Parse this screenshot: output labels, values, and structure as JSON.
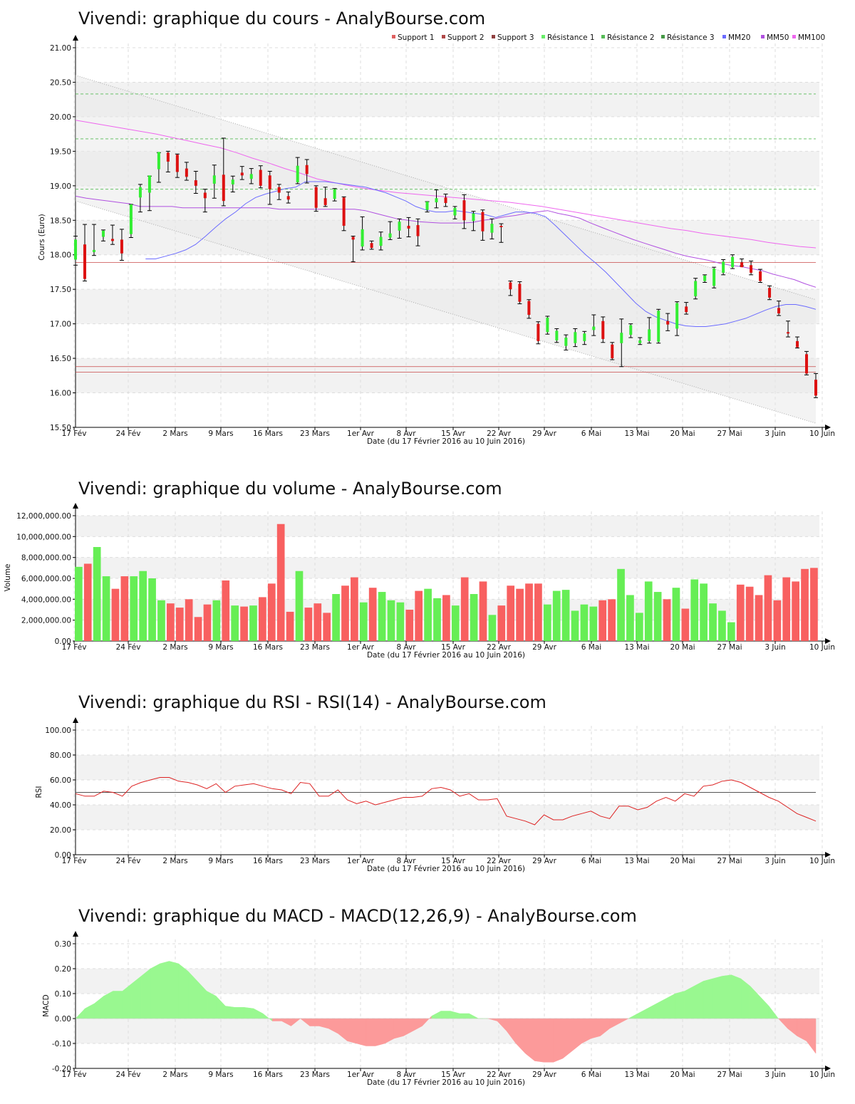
{
  "chart_data": [
    {
      "type": "candlestick",
      "title": "Vivendi: graphique du cours - AnalyBourse.com",
      "xlabel": "Date (du 17 Février 2016 au 10 Juin 2016)",
      "ylabel": "Cours (Euro)",
      "ylim": [
        15.5,
        21.0
      ],
      "yticks": [
        "15.50",
        "16.00",
        "16.50",
        "17.00",
        "17.50",
        "18.00",
        "18.50",
        "19.00",
        "19.50",
        "20.00",
        "20.50",
        "21.00"
      ],
      "xticks": [
        "17 Fév",
        "24 Fév",
        "2 Mars",
        "9 Mars",
        "16 Mars",
        "23 Mars",
        "1er Avr",
        "8 Avr",
        "15 Avr",
        "22 Avr",
        "29 Avr",
        "6 Mai",
        "13 Mai",
        "20 Mai",
        "27 Mai",
        "3 Juin",
        "10 Juin"
      ],
      "legend": [
        "Support 1",
        "Support 2",
        "Support 3",
        "Résistance 1",
        "Résistance 2",
        "Résistance 3",
        "MM20",
        "MM50",
        "MM100"
      ],
      "legend_colors": [
        "#e06060",
        "#b04848",
        "#904040",
        "#66ee66",
        "#55bb55",
        "#449944",
        "#6b6bff",
        "#b050e0",
        "#ee66ee"
      ],
      "supports": [
        17.89,
        16.38,
        16.3
      ],
      "resistances": [
        18.95,
        19.68,
        20.33
      ],
      "candles": [
        [
          18.27,
          17.85,
          17.93,
          18.22
        ],
        [
          18.44,
          17.62,
          18.15,
          17.65
        ],
        [
          18.44,
          17.99,
          18.04,
          18.07
        ],
        [
          18.36,
          18.2,
          18.26,
          18.35
        ],
        [
          18.43,
          18.15,
          18.23,
          18.2
        ],
        [
          18.37,
          17.92,
          18.22,
          18.02
        ],
        [
          18.73,
          18.25,
          18.3,
          18.73
        ],
        [
          19.02,
          18.62,
          18.83,
          18.98
        ],
        [
          19.14,
          18.64,
          18.9,
          19.15
        ],
        [
          19.48,
          19.05,
          19.24,
          19.49
        ],
        [
          19.5,
          19.2,
          19.48,
          19.35
        ],
        [
          19.46,
          19.12,
          19.45,
          19.2
        ],
        [
          19.34,
          19.08,
          19.25,
          19.13
        ],
        [
          19.21,
          18.89,
          19.08,
          19.0
        ],
        [
          18.95,
          18.62,
          18.9,
          18.82
        ],
        [
          19.3,
          18.82,
          19.03,
          19.15
        ],
        [
          19.69,
          18.71,
          19.16,
          18.78
        ],
        [
          19.14,
          18.91,
          19.02,
          19.09
        ],
        [
          19.28,
          19.09,
          19.19,
          19.15
        ],
        [
          19.25,
          19.03,
          19.1,
          19.17
        ],
        [
          19.29,
          18.97,
          19.23,
          19.0
        ],
        [
          19.21,
          18.73,
          19.15,
          18.95
        ],
        [
          19.02,
          18.8,
          18.98,
          18.9
        ],
        [
          18.91,
          18.75,
          18.85,
          18.8
        ],
        [
          19.41,
          19.03,
          19.05,
          19.29
        ],
        [
          19.38,
          19.04,
          19.3,
          19.17
        ],
        [
          19.0,
          18.63,
          18.98,
          18.68
        ],
        [
          18.98,
          18.7,
          18.82,
          18.72
        ],
        [
          18.96,
          18.78,
          18.81,
          18.95
        ],
        [
          18.84,
          18.35,
          18.83,
          18.42
        ],
        [
          18.27,
          17.9,
          18.26,
          18.22
        ],
        [
          18.55,
          18.07,
          18.12,
          18.37
        ],
        [
          18.2,
          18.08,
          18.17,
          18.1
        ],
        [
          18.33,
          18.07,
          18.13,
          18.26
        ],
        [
          18.48,
          18.22,
          18.25,
          18.31
        ],
        [
          18.52,
          18.24,
          18.35,
          18.48
        ],
        [
          18.54,
          18.26,
          18.42,
          18.38
        ],
        [
          18.52,
          18.13,
          18.43,
          18.27
        ],
        [
          18.77,
          18.62,
          18.65,
          18.77
        ],
        [
          18.94,
          18.68,
          18.76,
          18.82
        ],
        [
          18.88,
          18.7,
          18.83,
          18.75
        ],
        [
          18.7,
          18.52,
          18.57,
          18.68
        ],
        [
          18.87,
          18.38,
          18.79,
          18.5
        ],
        [
          18.63,
          18.35,
          18.49,
          18.6
        ],
        [
          18.65,
          18.21,
          18.62,
          18.34
        ],
        [
          18.52,
          18.23,
          18.32,
          18.45
        ],
        [
          18.45,
          18.18,
          18.42,
          18.4
        ],
        [
          17.62,
          17.41,
          17.6,
          17.5
        ],
        [
          17.61,
          17.29,
          17.58,
          17.32
        ],
        [
          17.35,
          17.08,
          17.33,
          17.13
        ],
        [
          17.03,
          16.71,
          17.0,
          16.75
        ],
        [
          17.11,
          16.85,
          16.88,
          17.09
        ],
        [
          16.93,
          16.73,
          16.76,
          16.9
        ],
        [
          16.84,
          16.62,
          16.68,
          16.8
        ],
        [
          16.93,
          16.67,
          16.72,
          16.88
        ],
        [
          16.89,
          16.7,
          16.75,
          16.86
        ],
        [
          17.13,
          16.83,
          16.91,
          16.96
        ],
        [
          17.1,
          16.73,
          17.04,
          16.78
        ],
        [
          16.73,
          16.48,
          16.7,
          16.5
        ],
        [
          17.07,
          16.38,
          16.72,
          16.87
        ],
        [
          17.0,
          16.8,
          16.84,
          16.98
        ],
        [
          16.8,
          16.7,
          16.72,
          16.76
        ],
        [
          17.09,
          16.72,
          16.75,
          16.92
        ],
        [
          17.21,
          16.72,
          16.74,
          17.19
        ],
        [
          17.15,
          16.9,
          17.04,
          16.99
        ],
        [
          17.32,
          16.83,
          16.93,
          17.3
        ],
        [
          17.31,
          17.14,
          17.25,
          17.17
        ],
        [
          17.66,
          17.36,
          17.4,
          17.62
        ],
        [
          17.71,
          17.6,
          17.62,
          17.7
        ],
        [
          17.82,
          17.52,
          17.55,
          17.8
        ],
        [
          17.93,
          17.71,
          17.74,
          17.9
        ],
        [
          18.0,
          17.8,
          17.82,
          17.97
        ],
        [
          17.94,
          17.84,
          17.89,
          17.82
        ],
        [
          17.91,
          17.71,
          17.85,
          17.74
        ],
        [
          17.79,
          17.6,
          17.76,
          17.62
        ],
        [
          17.55,
          17.35,
          17.52,
          17.38
        ],
        [
          17.33,
          17.12,
          17.23,
          17.15
        ],
        [
          17.04,
          16.81,
          16.88,
          16.86
        ],
        [
          16.81,
          16.65,
          16.75,
          16.66
        ],
        [
          16.6,
          16.26,
          16.56,
          16.28
        ],
        [
          16.28,
          15.93,
          16.19,
          15.96
        ]
      ],
      "mm20": [
        null,
        null,
        null,
        null,
        null,
        null,
        null,
        17.94,
        17.94,
        17.98,
        18.02,
        18.07,
        18.15,
        18.27,
        18.4,
        18.52,
        18.62,
        18.74,
        18.83,
        18.88,
        18.92,
        18.96,
        18.98,
        19.06,
        19.06,
        19.06,
        19.04,
        19.02,
        19.0,
        18.98,
        18.94,
        18.9,
        18.84,
        18.78,
        18.7,
        18.65,
        18.62,
        18.62,
        18.64,
        18.62,
        18.6,
        18.58,
        18.54,
        18.58,
        18.62,
        18.62,
        18.6,
        18.55,
        18.42,
        18.28,
        18.14,
        18.0,
        17.88,
        17.75,
        17.6,
        17.45,
        17.3,
        17.18,
        17.1,
        17.05,
        17.0,
        16.97,
        16.96,
        16.96,
        16.98,
        17.0,
        17.04,
        17.08,
        17.14,
        17.2,
        17.25,
        17.28,
        17.28,
        17.25,
        17.21
      ],
      "mm50": [
        18.85,
        18.82,
        18.8,
        18.78,
        18.76,
        18.74,
        18.7,
        18.7,
        18.7,
        18.7,
        18.68,
        18.68,
        18.68,
        18.68,
        18.68,
        18.68,
        18.68,
        18.68,
        18.68,
        18.66,
        18.66,
        18.66,
        18.66,
        18.66,
        18.66,
        18.66,
        18.66,
        18.64,
        18.6,
        18.56,
        18.52,
        18.5,
        18.48,
        18.47,
        18.46,
        18.46,
        18.46,
        18.47,
        18.5,
        18.52,
        18.55,
        18.57,
        18.6,
        18.62,
        18.64,
        18.6,
        18.57,
        18.53,
        18.46,
        18.4,
        18.34,
        18.28,
        18.22,
        18.17,
        18.12,
        18.07,
        18.02,
        17.98,
        17.95,
        17.92,
        17.88,
        17.85,
        17.83,
        17.8,
        17.77,
        17.72,
        17.68,
        17.64,
        17.58,
        17.53
      ],
      "mm100": [
        19.95,
        19.91,
        19.87,
        19.83,
        19.79,
        19.75,
        19.7,
        19.65,
        19.6,
        19.55,
        19.48,
        19.4,
        19.33,
        19.25,
        19.18,
        19.1,
        19.05,
        19.0,
        18.96,
        18.93,
        18.9,
        18.88,
        18.86,
        18.84,
        18.82,
        18.8,
        18.78,
        18.76,
        18.73,
        18.7,
        18.66,
        18.62,
        18.58,
        18.54,
        18.5,
        18.46,
        18.42,
        18.38,
        18.35,
        18.31,
        18.28,
        18.25,
        18.22,
        18.18,
        18.15,
        18.12,
        18.1
      ]
    },
    {
      "type": "bar",
      "title": "Vivendi: graphique du volume - AnalyBourse.com",
      "xlabel": "Date (du 17 Février 2016 au 10 Juin 2016)",
      "ylabel": "Volume",
      "ylim": [
        0,
        12000000
      ],
      "yticks": [
        "0.00",
        "2,000,000.00",
        "4,000,000.00",
        "6,000,000.00",
        "8,000,000.00",
        "10,000,000.00",
        "12,000,000.00"
      ],
      "xticks": [
        "17 Fév",
        "24 Fév",
        "2 Mars",
        "9 Mars",
        "16 Mars",
        "23 Mars",
        "1er Avr",
        "8 Avr",
        "15 Avr",
        "22 Avr",
        "29 Avr",
        "6 Mai",
        "13 Mai",
        "20 Mai",
        "27 Mai",
        "3 Juin",
        "10 Juin"
      ],
      "values": [
        7100000,
        7400000,
        9000000,
        6200000,
        5000000,
        6200000,
        6200000,
        6700000,
        6000000,
        3900000,
        3600000,
        3200000,
        4000000,
        2300000,
        3500000,
        3900000,
        5800000,
        3400000,
        3300000,
        3400000,
        4200000,
        5500000,
        11200000,
        2800000,
        6700000,
        3200000,
        3600000,
        2700000,
        4500000,
        5300000,
        6100000,
        3700000,
        5100000,
        4700000,
        3900000,
        3700000,
        3000000,
        4800000,
        5000000,
        4100000,
        4400000,
        3400000,
        6100000,
        4500000,
        5700000,
        2500000,
        3400000,
        5300000,
        5000000,
        5500000,
        5500000,
        3500000,
        4800000,
        4900000,
        2900000,
        3500000,
        3300000,
        3900000,
        4000000,
        6900000,
        4400000,
        2700000,
        5700000,
        4700000,
        4000000,
        5100000,
        3100000,
        5900000,
        5500000,
        3600000,
        2900000,
        1800000,
        5400000,
        5200000,
        4400000,
        6300000,
        3900000,
        6100000,
        5700000,
        6900000,
        7000000
      ]
    },
    {
      "type": "line",
      "title": "Vivendi: graphique du RSI - RSI(14) - AnalyBourse.com",
      "xlabel": "Date (du 17 Février 2016 au 10 Juin 2016)",
      "ylabel": "RSI",
      "ylim": [
        0,
        100
      ],
      "yticks": [
        "0.00",
        "20.00",
        "40.00",
        "60.00",
        "80.00",
        "100.00"
      ],
      "xticks": [
        "17 Fév",
        "24 Fév",
        "2 Mars",
        "9 Mars",
        "16 Mars",
        "23 Mars",
        "1er Avr",
        "8 Avr",
        "15 Avr",
        "22 Avr",
        "29 Avr",
        "6 Mai",
        "13 Mai",
        "20 Mai",
        "27 Mai",
        "3 Juin",
        "10 Juin"
      ],
      "reference": 50,
      "values": [
        49,
        47,
        47,
        51,
        50,
        47,
        55,
        58,
        60,
        62,
        62,
        59,
        58,
        56,
        53,
        57,
        50,
        55,
        56,
        57,
        55,
        53,
        52,
        49,
        58,
        57,
        47,
        47,
        52,
        44,
        41,
        43,
        40,
        42,
        44,
        46,
        46,
        47,
        53,
        54,
        52,
        47,
        49,
        44,
        44,
        45,
        31,
        29,
        27,
        24,
        32,
        28,
        28,
        31,
        33,
        35,
        31,
        29,
        39,
        39,
        36,
        38,
        43,
        46,
        43,
        49,
        47,
        55,
        56,
        59,
        60,
        58,
        54,
        50,
        46,
        43,
        38,
        33,
        30,
        27
      ],
      "color": "#dd2222"
    },
    {
      "type": "area",
      "title": "Vivendi: graphique du MACD - MACD(12,26,9) - AnalyBourse.com",
      "xlabel": "Date (du 17 Février 2016 au 10 Juin 2016)",
      "ylabel": "MACD",
      "ylim": [
        -0.2,
        0.3
      ],
      "yticks": [
        "-0.20",
        "-0.10",
        "0.00",
        "0.10",
        "0.20",
        "0.30"
      ],
      "xticks": [
        "17 Fév",
        "24 Fév",
        "2 Mars",
        "9 Mars",
        "16 Mars",
        "23 Mars",
        "1er Avr",
        "8 Avr",
        "15 Avr",
        "22 Avr",
        "29 Avr",
        "6 Mai",
        "13 Mai",
        "20 Mai",
        "27 Mai",
        "3 Juin",
        "10 Juin"
      ],
      "values": [
        0.0,
        0.04,
        0.06,
        0.09,
        0.11,
        0.11,
        0.14,
        0.17,
        0.2,
        0.22,
        0.23,
        0.22,
        0.19,
        0.15,
        0.11,
        0.09,
        0.05,
        0.045,
        0.045,
        0.04,
        0.02,
        -0.01,
        -0.01,
        -0.03,
        0.0,
        -0.03,
        -0.03,
        -0.04,
        -0.06,
        -0.09,
        -0.1,
        -0.11,
        -0.11,
        -0.1,
        -0.08,
        -0.07,
        -0.05,
        -0.03,
        0.01,
        0.03,
        0.03,
        0.02,
        0.02,
        0.0,
        0.0,
        -0.01,
        -0.05,
        -0.1,
        -0.14,
        -0.17,
        -0.175,
        -0.175,
        -0.16,
        -0.13,
        -0.1,
        -0.08,
        -0.07,
        -0.04,
        -0.02,
        0.0,
        0.02,
        0.04,
        0.06,
        0.08,
        0.1,
        0.11,
        0.13,
        0.15,
        0.16,
        0.17,
        0.175,
        0.16,
        0.13,
        0.09,
        0.05,
        0.0,
        -0.04,
        -0.07,
        -0.09,
        -0.14
      ],
      "positive_color": "#99f890",
      "negative_color": "#fc9a9a"
    }
  ]
}
